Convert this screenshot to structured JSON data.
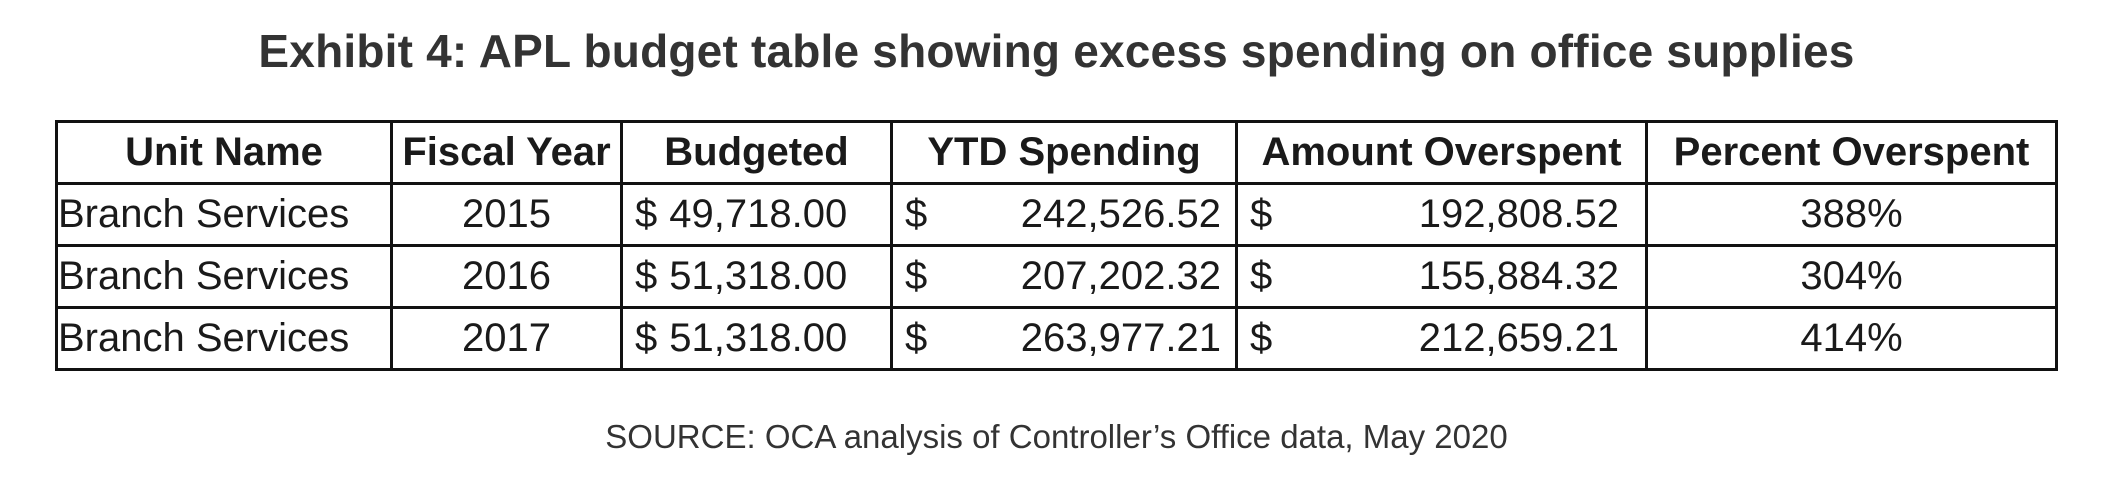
{
  "chart_data": {
    "type": "table",
    "title": "Exhibit 4: APL budget table showing excess spending on office supplies",
    "columns": [
      "Unit Name",
      "Fiscal Year",
      "Budgeted",
      "YTD Spending",
      "Amount Overspent",
      "Percent Overspent"
    ],
    "currency_symbol": "$",
    "rows": [
      {
        "unit": "Branch Services",
        "year": "2015",
        "budgeted": "49,718.00",
        "ytd": "242,526.52",
        "overspent": "192,808.52",
        "percent": "388%"
      },
      {
        "unit": "Branch Services",
        "year": "2016",
        "budgeted": "51,318.00",
        "ytd": "207,202.32",
        "overspent": "155,884.32",
        "percent": "304%"
      },
      {
        "unit": "Branch Services",
        "year": "2017",
        "budgeted": "51,318.00",
        "ytd": "263,977.21",
        "overspent": "212,659.21",
        "percent": "414%"
      }
    ],
    "source": "SOURCE: OCA analysis of Controller’s Office data, May 2020"
  }
}
